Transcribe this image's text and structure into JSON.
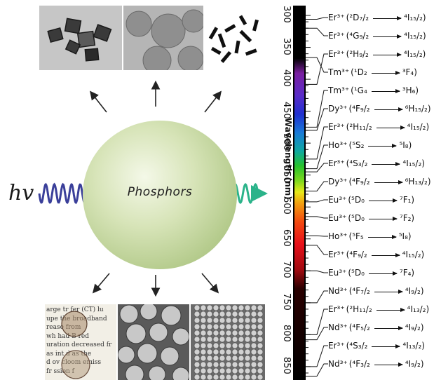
{
  "center_label": "Phosphors",
  "excitation_label": "hv",
  "scale": {
    "axis_title": "Wavelength (nm)",
    "ticks": [
      "300",
      "350",
      "400",
      "450",
      "500",
      "550",
      "600",
      "650",
      "700",
      "750",
      "800",
      "850"
    ],
    "tick_values": [
      300,
      350,
      400,
      450,
      500,
      550,
      600,
      650,
      700,
      750,
      800,
      850
    ],
    "range": [
      300,
      860
    ]
  },
  "transitions": [
    {
      "ion": "Er³⁺",
      "from": "(²D₇/₂",
      "to": "⁴I₁₅/₂)",
      "wavelength": 306,
      "color": "#111111"
    },
    {
      "ion": "Er³⁺",
      "from": "(⁴G₉/₂",
      "to": "⁴I₁₅/₂)",
      "wavelength": 320,
      "color": "#111111"
    },
    {
      "ion": "Er³⁺",
      "from": "(²H₉/₂",
      "to": "⁴I₁₅/₂)",
      "wavelength": 408,
      "color": "#111111"
    },
    {
      "ion": "Tm³⁺",
      "from": "(¹D₂",
      "to": "³F₄)",
      "wavelength": 366,
      "color": "#111111"
    },
    {
      "ion": "Tm³⁺",
      "from": "(¹G₄",
      "to": "³H₆)",
      "wavelength": 475,
      "color": "#111111"
    },
    {
      "ion": "Dy³⁺",
      "from": "(⁴F₉/₂",
      "to": "⁶H₁₅/₂)",
      "wavelength": 480,
      "color": "#111111"
    },
    {
      "ion": "Er³⁺",
      "from": "(²H₁₁/₂",
      "to": "⁴I₁₅/₂)",
      "wavelength": 525,
      "color": "#111111"
    },
    {
      "ion": "Ho³⁺",
      "from": "(⁵S₂",
      "to": "⁵I₈)",
      "wavelength": 540,
      "color": "#111111"
    },
    {
      "ion": "Er³⁺",
      "from": "(⁴S₃/₂",
      "to": "⁴I₁₅/₂)",
      "wavelength": 545,
      "color": "#111111"
    },
    {
      "ion": "Dy³⁺",
      "from": "(⁴F₉/₂",
      "to": "⁶H₁₃/₂)",
      "wavelength": 575,
      "color": "#111111"
    },
    {
      "ion": "Eu³⁺",
      "from": "(⁵D₀",
      "to": "⁷F₁)",
      "wavelength": 592,
      "color": "#111111"
    },
    {
      "ion": "Eu³⁺",
      "from": "(⁵D₀",
      "to": "⁷F₂)",
      "wavelength": 615,
      "color": "#111111"
    },
    {
      "ion": "Ho³⁺",
      "from": "(⁵F₅",
      "to": "⁵I₈)",
      "wavelength": 645,
      "color": "#111111"
    },
    {
      "ion": "Er³⁺",
      "from": "(⁴F₉/₂",
      "to": "⁴I₁₅/₂)",
      "wavelength": 660,
      "color": "#111111"
    },
    {
      "ion": "Eu³⁺",
      "from": "(⁵D₀",
      "to": "⁷F₄)",
      "wavelength": 700,
      "color": "#111111"
    },
    {
      "ion": "Nd³⁺",
      "from": "(⁴F₇/₂",
      "to": "⁴I₉/₂)",
      "wavelength": 750,
      "color": "#111111"
    },
    {
      "ion": "Er³⁺",
      "from": "(²H₁₁/₂",
      "to": "⁴I₁₃/₂)",
      "wavelength": 800,
      "color": "#111111"
    },
    {
      "ion": "Nd³⁺",
      "from": "(⁴F₅/₂",
      "to": "⁴I₉/₂)",
      "wavelength": 808,
      "color": "#111111"
    },
    {
      "ion": "Er³⁺",
      "from": "(⁴S₃/₂",
      "to": "⁴I₁₃/₂)",
      "wavelength": 850,
      "color": "#111111"
    },
    {
      "ion": "Nd³⁺",
      "from": "(⁴F₃/₂",
      "to": "⁴I₉/₂)",
      "wavelength": 865,
      "color": "#111111"
    }
  ],
  "images_top": [
    {
      "name": "tem-nanocubes",
      "kind": "micrograph"
    },
    {
      "name": "tem-nanospheres",
      "kind": "micrograph"
    },
    {
      "name": "tem-nanorods",
      "kind": "micrograph"
    }
  ],
  "images_bottom": [
    {
      "name": "printed-text-with-particles",
      "text_lines": [
        "arge tr  fer (CT) lu",
        "upe  the broadband",
        "rease   from",
        "wh  had B red",
        "uration decreased fr",
        "as int  d as the",
        "d ov cloom emiss",
        "   fr   ssion f"
      ]
    },
    {
      "name": "sem-microspheres",
      "kind": "micrograph"
    },
    {
      "name": "sem-nanoparticles",
      "kind": "micrograph"
    }
  ],
  "colors": {
    "excitation_wave": "#3a3f9a",
    "emission_wave": "#2bb38a",
    "arrow": "#222222"
  }
}
